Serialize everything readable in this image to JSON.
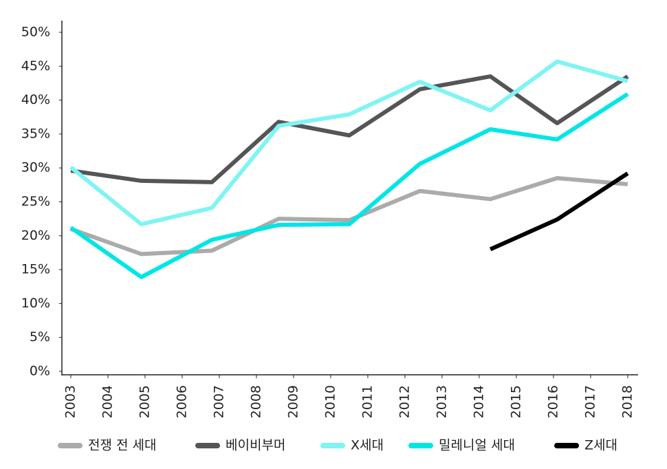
{
  "chart_data": {
    "type": "line",
    "x": [
      2003,
      2004.9,
      2006.8,
      2008.6,
      2010.5,
      2012.4,
      2014.3,
      2016.1,
      2018
    ],
    "xlim": [
      2002.76,
      2018.28
    ],
    "xticks": [
      2003,
      2004,
      2005,
      2006,
      2007,
      2008,
      2009,
      2010,
      2011,
      2012,
      2013,
      2014,
      2015,
      2016,
      2017,
      2018
    ],
    "ylim": [
      0,
      50
    ],
    "yticks": [
      {
        "value": 0,
        "label": "0%"
      },
      {
        "value": 5,
        "label": "5%"
      },
      {
        "value": 10,
        "label": "10%"
      },
      {
        "value": 15,
        "label": "15%"
      },
      {
        "value": 20,
        "label": "20%"
      },
      {
        "value": 25,
        "label": "25%"
      },
      {
        "value": 30,
        "label": "30%"
      },
      {
        "value": 35,
        "label": "35%"
      },
      {
        "value": 40,
        "label": "40%"
      },
      {
        "value": 45,
        "label": "45%"
      },
      {
        "value": 50,
        "label": "50%"
      }
    ],
    "grid": false,
    "legend": "bottom",
    "series": [
      {
        "name": "전쟁 전 세대",
        "color": "#ababab",
        "values": [
          21.0,
          17.3,
          17.8,
          22.5,
          22.3,
          26.6,
          25.4,
          28.5,
          27.6
        ]
      },
      {
        "name": "베이비부머",
        "color": "#555555",
        "values": [
          29.6,
          28.1,
          27.9,
          36.8,
          34.8,
          41.6,
          43.5,
          36.6,
          43.5
        ]
      },
      {
        "name": "X세대",
        "color": "#80f4f4",
        "values": [
          30.1,
          21.7,
          24.1,
          36.2,
          37.9,
          42.7,
          38.5,
          45.7,
          42.8
        ]
      },
      {
        "name": "밀레니얼 세대",
        "color": "#00e6e6",
        "values": [
          21.2,
          13.9,
          19.4,
          21.6,
          21.7,
          30.6,
          35.7,
          34.2,
          40.9
        ]
      },
      {
        "name": "Z세대",
        "color": "#000000",
        "values": [
          null,
          null,
          null,
          null,
          null,
          null,
          18.0,
          22.4,
          29.2
        ]
      }
    ]
  }
}
